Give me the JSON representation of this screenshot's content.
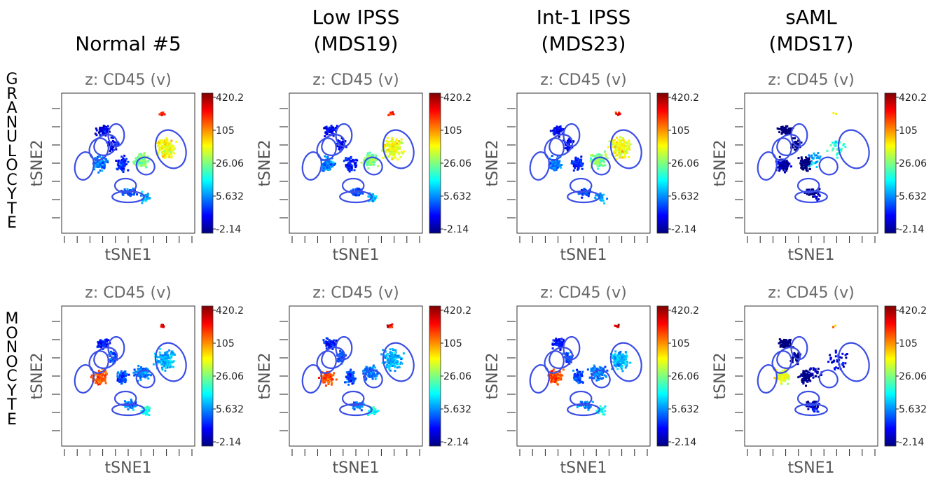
{
  "columns": [
    {
      "title_lines": [
        "Normal #5"
      ]
    },
    {
      "title_lines": [
        "Low IPSS",
        "(MDS19)"
      ]
    },
    {
      "title_lines": [
        "Int-1 IPSS",
        "(MDS23)"
      ]
    },
    {
      "title_lines": [
        "sAML",
        "(MDS17)"
      ]
    }
  ],
  "rows": [
    {
      "label_letters": [
        "G",
        "R",
        "A",
        "N",
        "U",
        "L",
        "O",
        "C",
        "Y",
        "T",
        "E"
      ]
    },
    {
      "label_letters": [
        "M",
        "O",
        "N",
        "O",
        "C",
        "Y",
        "T",
        "E"
      ]
    }
  ],
  "chart_data": {
    "type": "scatter",
    "panel_title": "z: CD45 (v)",
    "xlabel": "tSNE1",
    "ylabel": "tSNE2",
    "colorbar_ticks": [
      "420.2",
      "105",
      "26.06",
      "5.632",
      "-2.14"
    ],
    "colormap": [
      "#00007f",
      "#0000ff",
      "#007fff",
      "#00ffff",
      "#7fff7f",
      "#ffff00",
      "#ff7f00",
      "#ff0000",
      "#7f0000"
    ],
    "outline_color": "#3b4ee6",
    "grid": false,
    "panels": [
      {
        "row": "GRANULOCYTE",
        "column": "Normal #5"
      },
      {
        "row": "GRANULOCYTE",
        "column": "Low IPSS (MDS19)"
      },
      {
        "row": "GRANULOCYTE",
        "column": "Int-1 IPSS (MDS23)"
      },
      {
        "row": "GRANULOCYTE",
        "column": "sAML (MDS17)"
      },
      {
        "row": "MONOCYTE",
        "column": "Normal #5"
      },
      {
        "row": "MONOCYTE",
        "column": "Low IPSS (MDS19)"
      },
      {
        "row": "MONOCYTE",
        "column": "Int-1 IPSS (MDS23)"
      },
      {
        "row": "MONOCYTE",
        "column": "sAML (MDS17)"
      }
    ]
  }
}
